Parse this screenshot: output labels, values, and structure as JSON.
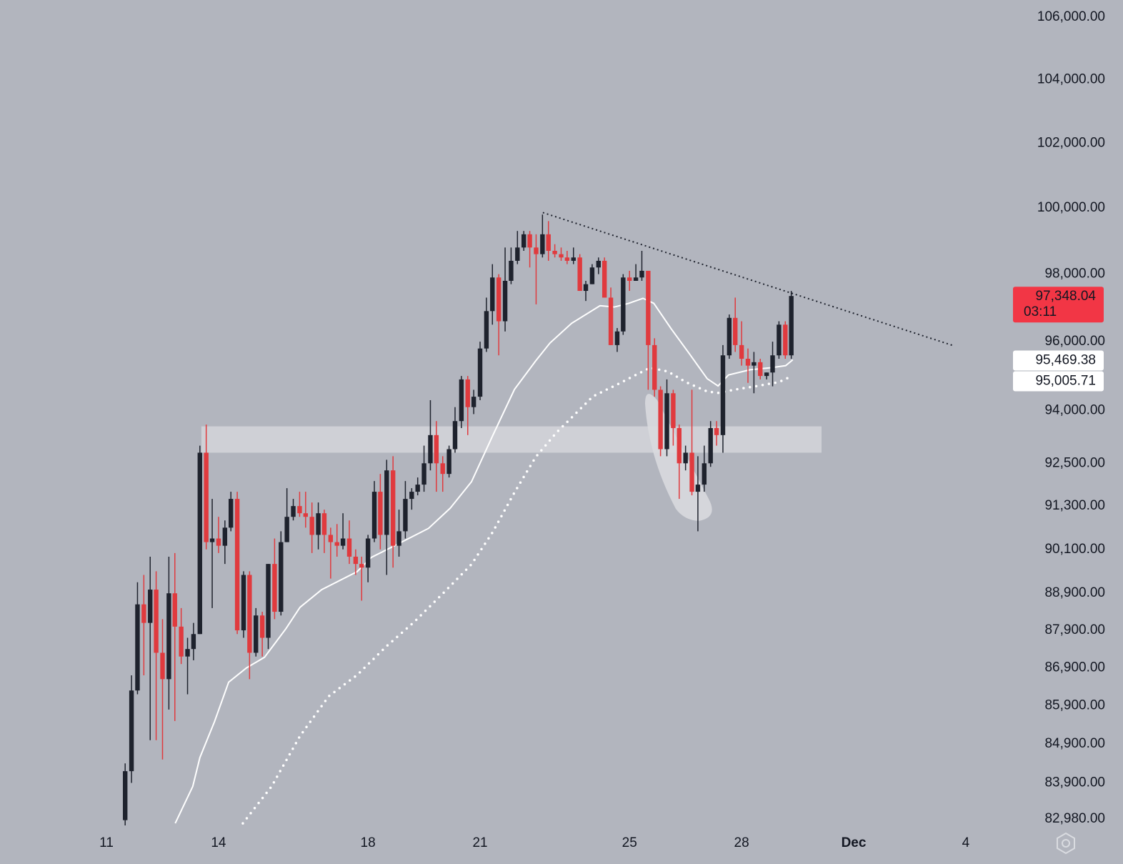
{
  "chart_data": {
    "type": "candlestick",
    "log_scale": true,
    "up_color": "#1e222d",
    "down_color": "#e03a3e",
    "xlim": [
      8.15,
      34.92
    ],
    "xticks": [
      11,
      14,
      18,
      21,
      25,
      28,
      {
        "value": 31,
        "label": "Dec"
      },
      {
        "value": 34,
        "label": "4"
      }
    ],
    "ylim": [
      82817,
      106557
    ],
    "yticks": [
      {
        "value": 82980,
        "label": "82,980.00"
      },
      {
        "value": 83900,
        "label": "83,900.00"
      },
      {
        "value": 84900,
        "label": "84,900.00"
      },
      {
        "value": 85900,
        "label": "85,900.00"
      },
      {
        "value": 86900,
        "label": "86,900.00"
      },
      {
        "value": 87900,
        "label": "87,900.00"
      },
      {
        "value": 88900,
        "label": "88,900.00"
      },
      {
        "value": 90100,
        "label": "90,100.00"
      },
      {
        "value": 91300,
        "label": "91,300.00"
      },
      {
        "value": 92500,
        "label": "92,500.00"
      },
      {
        "value": 94000,
        "label": "94,000.00"
      },
      {
        "value": 96000,
        "label": "96,000.00"
      },
      {
        "value": 98000,
        "label": "98,000.00"
      },
      {
        "value": 100000,
        "label": "100,000.00"
      },
      {
        "value": 102000,
        "label": "102,000.00"
      },
      {
        "value": 104000,
        "label": "104,000.00"
      },
      {
        "value": 106000,
        "label": "106,000.00"
      }
    ],
    "x": [
      11.5,
      11.67,
      11.83,
      12,
      12.17,
      12.33,
      12.5,
      12.67,
      12.83,
      13,
      13.17,
      13.33,
      13.5,
      13.67,
      13.83,
      14,
      14.17,
      14.33,
      14.5,
      14.67,
      14.83,
      15,
      15.17,
      15.33,
      15.5,
      15.67,
      15.83,
      16,
      16.17,
      16.33,
      16.5,
      16.67,
      16.83,
      17,
      17.17,
      17.33,
      17.5,
      17.67,
      17.83,
      18,
      18.17,
      18.33,
      18.5,
      18.67,
      18.83,
      19,
      19.17,
      19.33,
      19.5,
      19.67,
      19.83,
      20,
      20.17,
      20.33,
      20.5,
      20.67,
      20.83,
      21,
      21.17,
      21.33,
      21.5,
      21.67,
      21.83,
      22,
      22.17,
      22.33,
      22.5,
      22.67,
      22.83,
      23,
      23.17,
      23.33,
      23.5,
      23.67,
      23.83,
      24,
      24.17,
      24.33,
      24.5,
      24.67,
      24.83,
      25,
      25.17,
      25.33,
      25.5,
      25.67,
      25.83,
      26,
      26.17,
      26.33,
      26.5,
      26.67,
      26.83,
      27,
      27.17,
      27.33,
      27.5,
      27.67,
      27.83,
      28,
      28.17,
      28.33,
      28.5,
      28.67,
      28.83,
      29,
      29.17,
      29.33
    ],
    "open": [
      82950,
      84200,
      86300,
      88600,
      88100,
      89000,
      87300,
      86600,
      88900,
      88000,
      87200,
      87400,
      87800,
      92800,
      90300,
      90400,
      90200,
      90700,
      91500,
      87900,
      89400,
      87300,
      88300,
      87700,
      89700,
      88400,
      90300,
      91000,
      91300,
      91100,
      91000,
      90500,
      91100,
      90500,
      90300,
      90200,
      90400,
      89900,
      89700,
      89600,
      90400,
      91700,
      90500,
      92300,
      90200,
      90600,
      91500,
      91700,
      91900,
      92500,
      93300,
      92500,
      92200,
      92900,
      93700,
      94900,
      94100,
      94400,
      95800,
      96900,
      97900,
      96600,
      97800,
      98400,
      98800,
      99200,
      98800,
      98600,
      99200,
      98700,
      98600,
      98500,
      98400,
      98500,
      97500,
      97700,
      98200,
      98400,
      97300,
      95900,
      96300,
      97900,
      97800,
      97900,
      98100,
      95900,
      94600,
      92900,
      94500,
      93500,
      92500,
      92800,
      91700,
      91900,
      92500,
      93500,
      93300,
      95600,
      96700,
      95900,
      95500,
      95300,
      95400,
      95000,
      95100,
      95600,
      96500,
      95600
    ],
    "high": [
      84400,
      86700,
      89200,
      89400,
      89900,
      89500,
      88200,
      89900,
      90000,
      88500,
      87700,
      88100,
      93000,
      93600,
      91500,
      91000,
      90900,
      91700,
      91700,
      89500,
      89500,
      88500,
      88400,
      89700,
      90400,
      90600,
      91800,
      91500,
      91700,
      91700,
      91400,
      91400,
      91200,
      90700,
      90800,
      91100,
      90900,
      90100,
      89900,
      90500,
      92000,
      92200,
      92600,
      92700,
      91200,
      92000,
      91800,
      92100,
      93000,
      94300,
      93700,
      92700,
      93000,
      94100,
      95000,
      95000,
      94600,
      96000,
      97300,
      98300,
      98000,
      98800,
      98800,
      99300,
      99300,
      99300,
      99200,
      99800,
      99600,
      98900,
      98800,
      98700,
      98800,
      98600,
      97800,
      98300,
      98500,
      98500,
      97600,
      96400,
      98000,
      98100,
      98300,
      98700,
      98100,
      96100,
      94700,
      94900,
      94600,
      93600,
      93000,
      94600,
      92700,
      93000,
      93700,
      93700,
      95900,
      96800,
      97300,
      96600,
      95800,
      95700,
      95500,
      95100,
      96000,
      96600,
      96600,
      97500
    ],
    "low": [
      82800,
      83900,
      86200,
      86700,
      85000,
      85000,
      84500,
      85800,
      85500,
      87000,
      86200,
      87100,
      87800,
      90100,
      88500,
      90000,
      89700,
      90600,
      87800,
      87700,
      86600,
      87200,
      87200,
      87400,
      88200,
      88300,
      90300,
      90900,
      91000,
      90700,
      90000,
      90100,
      90000,
      89300,
      89900,
      90100,
      89700,
      89400,
      88700,
      89200,
      90300,
      90100,
      89400,
      89600,
      89900,
      90400,
      91200,
      91600,
      91700,
      92300,
      91700,
      91700,
      92100,
      92800,
      93500,
      93300,
      93900,
      94300,
      95700,
      96500,
      95600,
      96300,
      97700,
      98300,
      98700,
      98200,
      97100,
      98500,
      98400,
      98500,
      98400,
      98300,
      98300,
      97500,
      97200,
      97700,
      98000,
      97300,
      95900,
      95700,
      96200,
      97500,
      97800,
      97800,
      94600,
      94400,
      92700,
      92700,
      93000,
      91500,
      92300,
      91600,
      90600,
      91700,
      92400,
      93000,
      92800,
      95500,
      95700,
      95300,
      94800,
      94500,
      94900,
      94900,
      94700,
      95500,
      95500,
      95500
    ],
    "close": [
      84200,
      86300,
      88600,
      88100,
      89000,
      87300,
      86600,
      88900,
      88000,
      87200,
      87400,
      87800,
      92800,
      90300,
      90400,
      90200,
      90700,
      91500,
      87900,
      89400,
      87300,
      88300,
      87700,
      89700,
      88400,
      90300,
      91000,
      91300,
      91100,
      91000,
      90500,
      91100,
      90500,
      90300,
      90200,
      90400,
      89900,
      89700,
      89600,
      90400,
      91700,
      90500,
      92300,
      90200,
      90600,
      91500,
      91700,
      91900,
      92500,
      93300,
      92500,
      92200,
      92900,
      93700,
      94900,
      94100,
      94400,
      95800,
      96900,
      97900,
      96600,
      97800,
      98400,
      98800,
      99200,
      98800,
      98600,
      99200,
      98700,
      98600,
      98500,
      98400,
      98500,
      97500,
      97700,
      98200,
      98400,
      97300,
      95900,
      96300,
      97900,
      97800,
      97900,
      98100,
      95900,
      94600,
      92900,
      94500,
      93500,
      92500,
      92800,
      91700,
      91900,
      92500,
      93500,
      93300,
      95600,
      96700,
      95900,
      95500,
      95300,
      95400,
      95000,
      95100,
      95600,
      96500,
      95600,
      97348.04
    ],
    "lines": [
      {
        "color": "#ffffff",
        "style": "solid",
        "x": [
          12.84,
          13.31,
          13.5,
          13.89,
          14.27,
          14.75,
          15.23,
          15.8,
          16.18,
          16.76,
          17.71,
          18.09,
          18.67,
          19.62,
          20.2,
          20.77,
          21.34,
          21.92,
          22.49,
          22.87,
          23.45,
          24.21,
          24.59,
          24.98,
          25.36,
          25.65,
          26.12,
          26.6,
          27.08,
          27.37,
          27.65,
          28.23,
          28.8,
          29.18,
          29.37
        ],
        "values": [
          82870,
          83810,
          84550,
          85480,
          86520,
          86900,
          87180,
          87940,
          88520,
          89000,
          89490,
          89880,
          90180,
          90680,
          91240,
          91980,
          93290,
          94610,
          95440,
          95960,
          96540,
          97060,
          97020,
          97130,
          97280,
          97130,
          96370,
          95650,
          94920,
          94710,
          95030,
          95180,
          95240,
          95300,
          95469.38
        ]
      },
      {
        "color": "#ffffff",
        "style": "dotted",
        "x": [
          14.65,
          15.42,
          16.18,
          16.95,
          17.71,
          18.48,
          19.24,
          20.01,
          20.77,
          21.34,
          21.92,
          22.49,
          23.06,
          23.45,
          24.02,
          24.59,
          25.17,
          25.55,
          26.03,
          26.51,
          27.08,
          27.37,
          27.84,
          28.42,
          28.99,
          29.37
        ],
        "values": [
          82870,
          83810,
          85110,
          86150,
          86710,
          87460,
          88130,
          88900,
          89690,
          90580,
          91680,
          92680,
          93390,
          93800,
          94410,
          94710,
          95030,
          95240,
          95130,
          94820,
          94550,
          94510,
          94610,
          94710,
          94820,
          95005.71
        ]
      }
    ],
    "trendline": {
      "color": "#1e222d",
      "x": [
        22.68,
        33.68
      ],
      "values": [
        99860,
        95880
      ]
    },
    "zone": {
      "color": "#d8dade",
      "x": [
        13.54,
        30.14
      ],
      "values": [
        92800,
        93550
      ]
    },
    "price_tags": [
      {
        "value": 97348.04,
        "label": "97,348.04",
        "sub": "03:11",
        "background": "#f23645",
        "text_color": "#ffffff"
      },
      {
        "value": 95469.38,
        "label": "95,469.38",
        "background": "#ffffff",
        "text_color": "#131722"
      },
      {
        "value": 95005.71,
        "label": "95,005.71",
        "background": "#ffffff",
        "text_color": "#131722"
      }
    ]
  }
}
